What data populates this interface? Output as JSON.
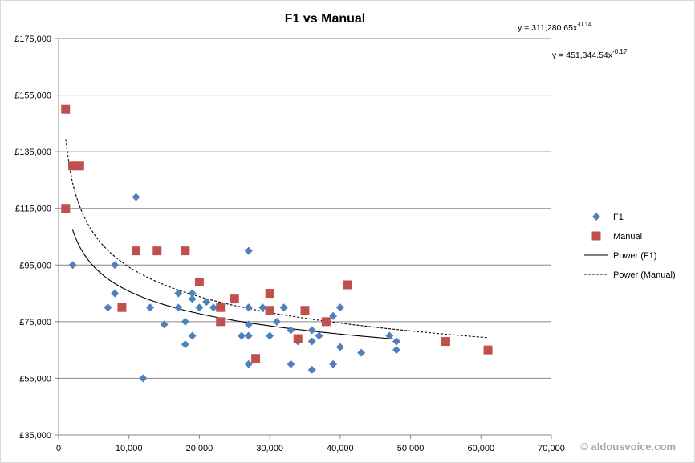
{
  "chart_data": {
    "type": "scatter",
    "title": "F1 vs Manual",
    "xlabel": "",
    "ylabel": "",
    "xlim": [
      0,
      70000
    ],
    "ylim": [
      35000,
      175000
    ],
    "x_ticks": [
      0,
      10000,
      20000,
      30000,
      40000,
      50000,
      60000,
      70000
    ],
    "x_tick_labels": [
      "0",
      "10,000",
      "20,000",
      "30,000",
      "40,000",
      "50,000",
      "60,000",
      "70,000"
    ],
    "y_ticks": [
      35000,
      55000,
      75000,
      95000,
      115000,
      135000,
      155000,
      175000
    ],
    "y_tick_labels": [
      "£35,000",
      "£55,000",
      "£75,000",
      "£95,000",
      "£115,000",
      "£135,000",
      "£155,000",
      "£175,000"
    ],
    "grid": "horizontal",
    "legend_position": "right",
    "series": [
      {
        "name": "F1",
        "marker": "diamond",
        "color": "#4F81BD",
        "points": [
          [
            2000,
            95000
          ],
          [
            7000,
            80000
          ],
          [
            8000,
            85000
          ],
          [
            8000,
            95000
          ],
          [
            11000,
            119000
          ],
          [
            12000,
            55000
          ],
          [
            13000,
            80000
          ],
          [
            15000,
            74000
          ],
          [
            17000,
            85000
          ],
          [
            17000,
            80000
          ],
          [
            18000,
            75000
          ],
          [
            18000,
            67000
          ],
          [
            19000,
            85000
          ],
          [
            19000,
            83000
          ],
          [
            19000,
            70000
          ],
          [
            20000,
            80000
          ],
          [
            21000,
            82000
          ],
          [
            22000,
            80000
          ],
          [
            26000,
            70000
          ],
          [
            27000,
            100000
          ],
          [
            27000,
            80000
          ],
          [
            27000,
            74000
          ],
          [
            27000,
            70000
          ],
          [
            27000,
            60000
          ],
          [
            29000,
            80000
          ],
          [
            30000,
            70000
          ],
          [
            31000,
            75000
          ],
          [
            32000,
            80000
          ],
          [
            33000,
            72000
          ],
          [
            33000,
            60000
          ],
          [
            34000,
            68000
          ],
          [
            36000,
            72000
          ],
          [
            36000,
            68000
          ],
          [
            36000,
            58000
          ],
          [
            37000,
            70000
          ],
          [
            39000,
            77000
          ],
          [
            39000,
            60000
          ],
          [
            40000,
            80000
          ],
          [
            40000,
            66000
          ],
          [
            43000,
            64000
          ],
          [
            47000,
            70000
          ],
          [
            48000,
            68000
          ],
          [
            48000,
            65000
          ]
        ]
      },
      {
        "name": "Manual",
        "marker": "square",
        "color": "#C0504D",
        "points": [
          [
            1000,
            150000
          ],
          [
            1000,
            115000
          ],
          [
            2000,
            130000
          ],
          [
            3000,
            130000
          ],
          [
            9000,
            80000
          ],
          [
            11000,
            100000
          ],
          [
            14000,
            100000
          ],
          [
            18000,
            100000
          ],
          [
            20000,
            89000
          ],
          [
            23000,
            80000
          ],
          [
            23000,
            75000
          ],
          [
            25000,
            83000
          ],
          [
            28000,
            62000
          ],
          [
            30000,
            85000
          ],
          [
            30000,
            79000
          ],
          [
            34000,
            69000
          ],
          [
            35000,
            79000
          ],
          [
            38000,
            75000
          ],
          [
            41000,
            88000
          ],
          [
            55000,
            68000
          ],
          [
            61000,
            65000
          ]
        ]
      }
    ],
    "trendlines": [
      {
        "name": "Power (F1)",
        "style": "solid",
        "a": 311280.65,
        "b": -0.14,
        "x_range": [
          2000,
          48000
        ],
        "equation_prefix": "y = 311,280.65x",
        "equation_exp": "-0.14"
      },
      {
        "name": "Power (Manual)",
        "style": "dashed",
        "a": 451344.54,
        "b": -0.17,
        "x_range": [
          1000,
          61000
        ],
        "equation_prefix": "y = 451,344.54x",
        "equation_exp": "-0.17"
      }
    ]
  },
  "watermark": "© aldousvoice.com"
}
